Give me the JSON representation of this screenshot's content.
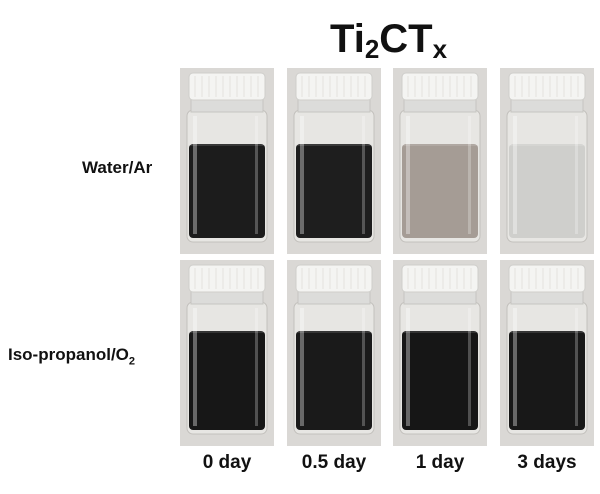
{
  "title": {
    "main": "Ti",
    "sub1": "2",
    "mid": "CT",
    "sub2": "x"
  },
  "rows": [
    {
      "label_main": "Water/Ar",
      "label_sub": ""
    },
    {
      "label_main": "Iso-propanol/O",
      "label_sub": "2"
    }
  ],
  "columns": [
    "0 day",
    "0.5 day",
    "1 day",
    "3 days"
  ],
  "vials": [
    [
      {
        "liquid": "#1c1c1c",
        "level": 0.4
      },
      {
        "liquid": "#1e1e1e",
        "level": 0.4
      },
      {
        "liquid": "#a59c95",
        "level": 0.4
      },
      {
        "liquid": "#cfcfcc",
        "level": 0.4
      }
    ],
    [
      {
        "liquid": "#171717",
        "level": 0.42
      },
      {
        "liquid": "#1a1a1a",
        "level": 0.42
      },
      {
        "liquid": "#161616",
        "level": 0.42
      },
      {
        "liquid": "#181818",
        "level": 0.42
      }
    ]
  ]
}
